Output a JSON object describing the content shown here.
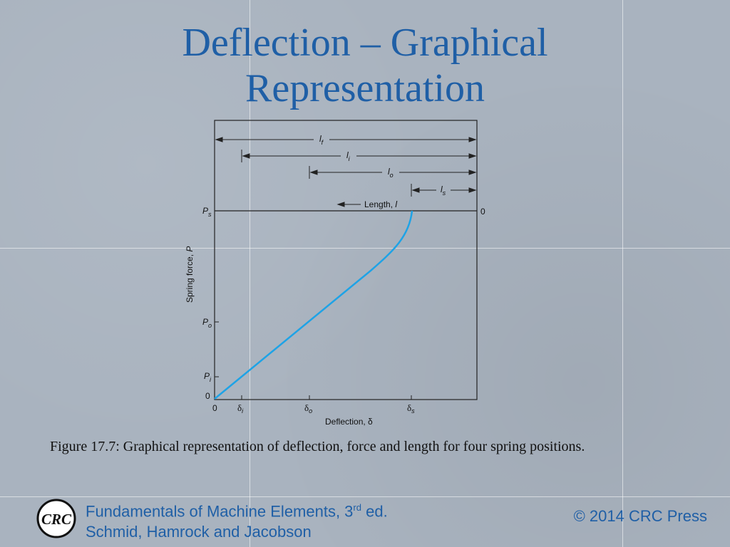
{
  "slide": {
    "title_line1": "Deflection – Graphical",
    "title_line2": "Representation"
  },
  "figure": {
    "labels": {
      "lf": "l",
      "lf_sub": "f",
      "li": "l",
      "li_sub": "i",
      "lo": "l",
      "lo_sub": "o",
      "ls": "l",
      "ls_sub": "s",
      "length_label": "Length, ",
      "length_symbol": "l",
      "right_zero": "0",
      "ps": "P",
      "ps_sub": "s",
      "po": "P",
      "po_sub": "o",
      "pi": "P",
      "pi_sub": "i",
      "y_zero": "0",
      "x_zero": "0",
      "di": "δ",
      "di_sub": "i",
      "do": "δ",
      "do_sub": "o",
      "ds": "δ",
      "ds_sub": "s",
      "ylabel": "Spring force, ",
      "ylabel_symbol": "P",
      "xlabel": "Deflection, δ"
    },
    "curve_color": "#1ea3e6"
  },
  "caption": "Figure 17.7:  Graphical representation of deflection, force and length for four spring positions.",
  "footer": {
    "book_line1_a": "Fundamentals of Machine Elements, 3",
    "book_line1_sup": "rd",
    "book_line1_b": " ed.",
    "book_line2": "Schmid, Hamrock and Jacobson",
    "copyright": "© 2014 CRC Press",
    "logo_text": "CRC"
  }
}
